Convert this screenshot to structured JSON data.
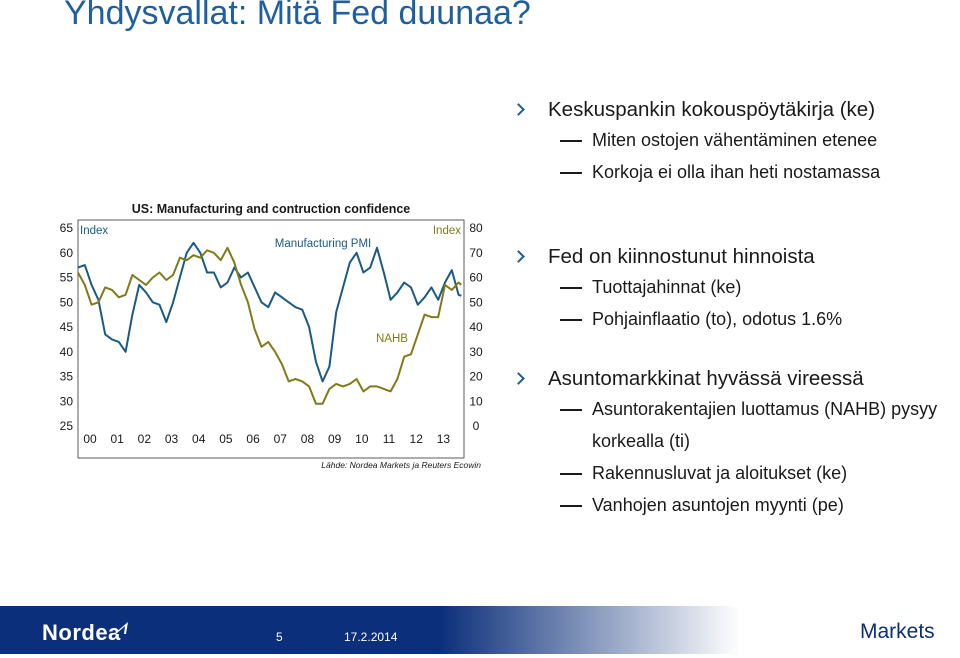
{
  "slide": {
    "title": "Yhdysvallat: Mitä Fed duunaa?",
    "page_number": "5",
    "date": "17.2.2014",
    "brand": "Nordea",
    "markets_label": "Markets"
  },
  "bullets": [
    {
      "text": "Keskuspankin kokouspöytäkirja (ke)",
      "subs": [
        "Miten ostojen vähentäminen etenee",
        "Korkoja ei olla ihan heti nostamassa"
      ]
    },
    {
      "text": "Fed on kiinnostunut hinnoista",
      "subs": [
        "Tuottajahinnat (ke)",
        "Pohjainflaatio (to), odotus 1.6%"
      ]
    },
    {
      "text": "Asuntomarkkinat hyvässä vireessä",
      "subs": [
        "Asuntorakentajien luottamus (NAHB) pysyy korkealla (ti)",
        "Rakennusluvat ja aloitukset (ke)",
        "Vanhojen asuntojen myynti (pe)"
      ]
    }
  ],
  "colors": {
    "title": "#1f5f9f",
    "pmi": "#1b5a82",
    "nahb": "#817a1a",
    "footer": "#0b2f7a"
  },
  "chart_data": {
    "type": "line",
    "title": "US: Manufacturing and contruction confidence",
    "source": "Lähde: Nordea Markets ja Reuters Ecowin",
    "left_axis_label": "Index",
    "right_axis_label": "Index",
    "left_ylim": [
      25,
      65
    ],
    "right_ylim": [
      0,
      80
    ],
    "left_ticks": [
      "65",
      "60",
      "55",
      "50",
      "45",
      "40",
      "35",
      "30",
      "25"
    ],
    "right_ticks": [
      "80",
      "70",
      "60",
      "50",
      "40",
      "30",
      "20",
      "10",
      "0"
    ],
    "x_ticks": [
      "00",
      "01",
      "02",
      "03",
      "04",
      "05",
      "06",
      "07",
      "08",
      "09",
      "10",
      "11",
      "12",
      "13"
    ],
    "x_range": [
      2000,
      2014.2
    ],
    "annotations": [
      "Manufacturing PMI",
      "NAHB"
    ],
    "series": [
      {
        "name": "Manufacturing PMI",
        "axis": "left",
        "points": [
          [
            2000.0,
            57.0
          ],
          [
            2000.25,
            57.5
          ],
          [
            2000.5,
            53.5
          ],
          [
            2000.75,
            50.5
          ],
          [
            2001.0,
            43.5
          ],
          [
            2001.25,
            42.5
          ],
          [
            2001.5,
            42.0
          ],
          [
            2001.75,
            40.0
          ],
          [
            2002.0,
            47.5
          ],
          [
            2002.25,
            53.5
          ],
          [
            2002.5,
            52.0
          ],
          [
            2002.75,
            50.0
          ],
          [
            2003.0,
            49.5
          ],
          [
            2003.25,
            46.0
          ],
          [
            2003.5,
            50.0
          ],
          [
            2003.75,
            55.0
          ],
          [
            2004.0,
            60.0
          ],
          [
            2004.25,
            62.0
          ],
          [
            2004.5,
            60.0
          ],
          [
            2004.75,
            56.0
          ],
          [
            2005.0,
            56.0
          ],
          [
            2005.25,
            53.0
          ],
          [
            2005.5,
            54.0
          ],
          [
            2005.75,
            57.0
          ],
          [
            2006.0,
            55.0
          ],
          [
            2006.25,
            56.0
          ],
          [
            2006.5,
            53.0
          ],
          [
            2006.75,
            50.0
          ],
          [
            2007.0,
            49.0
          ],
          [
            2007.25,
            52.0
          ],
          [
            2007.5,
            51.0
          ],
          [
            2007.75,
            50.0
          ],
          [
            2008.0,
            49.0
          ],
          [
            2008.25,
            48.5
          ],
          [
            2008.5,
            45.0
          ],
          [
            2008.75,
            38.0
          ],
          [
            2009.0,
            34.0
          ],
          [
            2009.25,
            37.0
          ],
          [
            2009.5,
            48.0
          ],
          [
            2009.75,
            53.0
          ],
          [
            2010.0,
            58.0
          ],
          [
            2010.25,
            60.0
          ],
          [
            2010.5,
            56.0
          ],
          [
            2010.75,
            57.0
          ],
          [
            2011.0,
            61.0
          ],
          [
            2011.25,
            56.0
          ],
          [
            2011.5,
            50.5
          ],
          [
            2011.75,
            52.0
          ],
          [
            2012.0,
            54.0
          ],
          [
            2012.25,
            53.0
          ],
          [
            2012.5,
            49.5
          ],
          [
            2012.75,
            51.0
          ],
          [
            2013.0,
            53.0
          ],
          [
            2013.25,
            50.5
          ],
          [
            2013.5,
            54.0
          ],
          [
            2013.75,
            56.5
          ],
          [
            2014.0,
            51.5
          ],
          [
            2014.1,
            51.3
          ]
        ]
      },
      {
        "name": "NAHB",
        "axis": "right",
        "points": [
          [
            2000.0,
            62.0
          ],
          [
            2000.25,
            57.0
          ],
          [
            2000.5,
            49.0
          ],
          [
            2000.75,
            50.0
          ],
          [
            2001.0,
            56.0
          ],
          [
            2001.25,
            55.0
          ],
          [
            2001.5,
            52.0
          ],
          [
            2001.75,
            53.0
          ],
          [
            2002.0,
            61.0
          ],
          [
            2002.25,
            59.0
          ],
          [
            2002.5,
            57.0
          ],
          [
            2002.75,
            60.0
          ],
          [
            2003.0,
            62.0
          ],
          [
            2003.25,
            59.0
          ],
          [
            2003.5,
            61.0
          ],
          [
            2003.75,
            68.0
          ],
          [
            2004.0,
            67.0
          ],
          [
            2004.25,
            69.0
          ],
          [
            2004.5,
            68.0
          ],
          [
            2004.75,
            71.0
          ],
          [
            2005.0,
            70.0
          ],
          [
            2005.25,
            67.0
          ],
          [
            2005.5,
            72.0
          ],
          [
            2005.75,
            66.0
          ],
          [
            2006.0,
            57.0
          ],
          [
            2006.25,
            50.0
          ],
          [
            2006.5,
            39.0
          ],
          [
            2006.75,
            32.0
          ],
          [
            2007.0,
            34.0
          ],
          [
            2007.25,
            30.0
          ],
          [
            2007.5,
            25.0
          ],
          [
            2007.75,
            18.0
          ],
          [
            2008.0,
            19.0
          ],
          [
            2008.25,
            18.0
          ],
          [
            2008.5,
            16.0
          ],
          [
            2008.75,
            9.0
          ],
          [
            2009.0,
            9.0
          ],
          [
            2009.25,
            15.0
          ],
          [
            2009.5,
            17.0
          ],
          [
            2009.75,
            16.0
          ],
          [
            2010.0,
            17.0
          ],
          [
            2010.25,
            19.0
          ],
          [
            2010.5,
            14.0
          ],
          [
            2010.75,
            16.0
          ],
          [
            2011.0,
            16.0
          ],
          [
            2011.25,
            15.0
          ],
          [
            2011.5,
            14.0
          ],
          [
            2011.75,
            19.0
          ],
          [
            2012.0,
            28.0
          ],
          [
            2012.25,
            29.0
          ],
          [
            2012.5,
            37.0
          ],
          [
            2012.75,
            45.0
          ],
          [
            2013.0,
            44.0
          ],
          [
            2013.25,
            44.0
          ],
          [
            2013.5,
            57.0
          ],
          [
            2013.75,
            55.0
          ],
          [
            2014.0,
            58.0
          ],
          [
            2014.1,
            57.0
          ]
        ]
      }
    ]
  }
}
